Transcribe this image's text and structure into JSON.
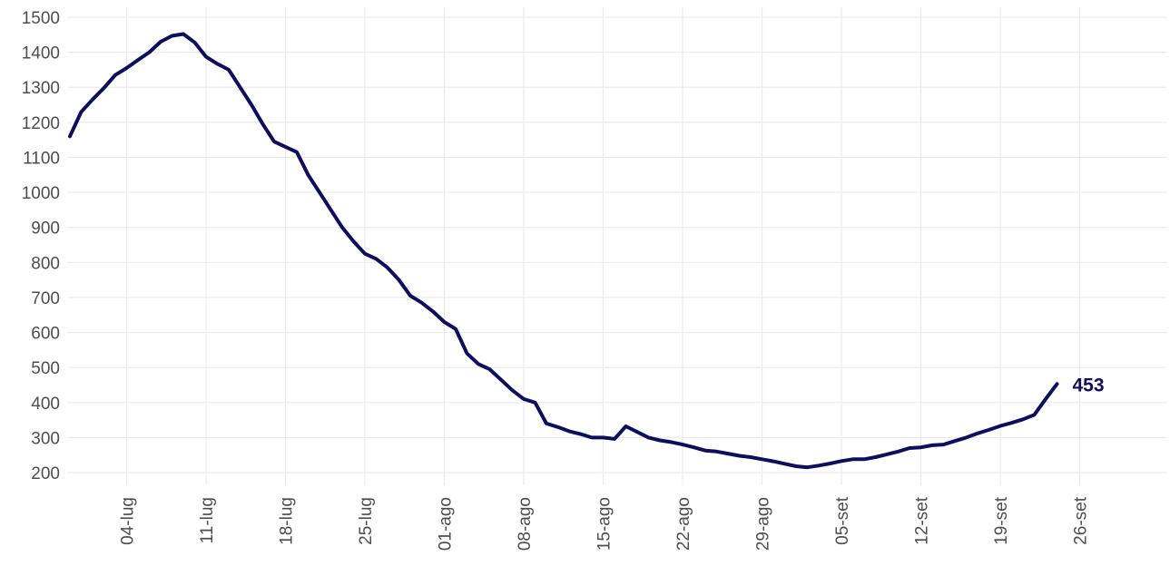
{
  "chart_data": {
    "type": "line",
    "title": "",
    "xlabel": "",
    "ylabel": "",
    "ylim": [
      180,
      1510
    ],
    "yticks": [
      200,
      300,
      400,
      500,
      600,
      700,
      800,
      900,
      1000,
      1100,
      1200,
      1300,
      1400,
      1500
    ],
    "xticks": [
      "04-lug",
      "11-lug",
      "18-lug",
      "25-lug",
      "01-ago",
      "08-ago",
      "15-ago",
      "22-ago",
      "29-ago",
      "05-set",
      "12-set",
      "19-set",
      "26-set"
    ],
    "x_start": "2020-06-29",
    "grid": true,
    "line_color": "#0d0f5e",
    "end_label": "453",
    "series": [
      {
        "values": [
          1160,
          1230,
          1265,
          1298,
          1335,
          1355,
          1378,
          1400,
          1430,
          1447,
          1452,
          1428,
          1387,
          1367,
          1350,
          1300,
          1250,
          1195,
          1145,
          1130,
          1115,
          1050,
          1000,
          950,
          900,
          860,
          825,
          810,
          785,
          750,
          705,
          685,
          660,
          630,
          610,
          540,
          510,
          495,
          465,
          435,
          410,
          400,
          340,
          330,
          318,
          310,
          300,
          300,
          296,
          332,
          316,
          300,
          292,
          287,
          280,
          272,
          263,
          260,
          254,
          248,
          244,
          238,
          232,
          225,
          218,
          215,
          220,
          226,
          233,
          238,
          238,
          244,
          252,
          260,
          270,
          272,
          278,
          280,
          290,
          300,
          312,
          322,
          333,
          342,
          352,
          365,
          410,
          453
        ]
      }
    ]
  }
}
